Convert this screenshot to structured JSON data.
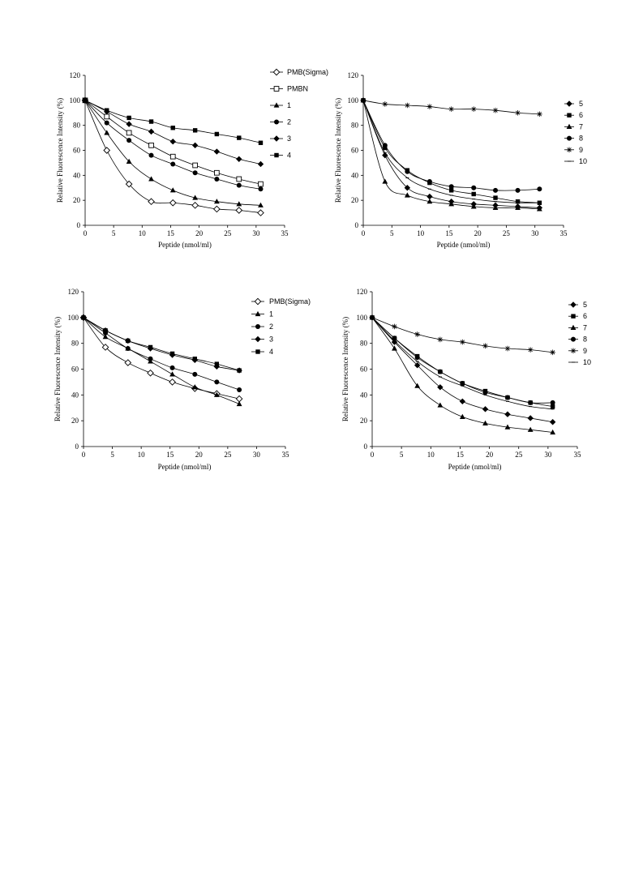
{
  "chart_data": [
    {
      "type": "line",
      "xlabel": "Peptide (nmol/ml)",
      "ylabel": "Relative Fluorescence Intensity (%)",
      "xlim": [
        0,
        35
      ],
      "ylim": [
        0,
        120
      ],
      "xticks": [
        "0",
        "5",
        "10",
        "15",
        "20",
        "25",
        "30",
        "35"
      ],
      "yticks": [
        "0",
        "20",
        "40",
        "60",
        "80",
        "100",
        "120"
      ],
      "grid": false,
      "legend": "right",
      "series": [
        {
          "name": "PMB(Sigma)",
          "marker": "diamond-open",
          "x": [
            0,
            3.8,
            7.7,
            11.6,
            15.4,
            19.3,
            23.1,
            27.0,
            30.8
          ],
          "y": [
            100,
            60,
            33,
            19,
            18,
            16,
            13,
            12,
            10
          ]
        },
        {
          "name": "PMBN",
          "marker": "square-open",
          "x": [
            0,
            3.8,
            7.7,
            11.6,
            15.4,
            19.3,
            23.1,
            27.0,
            30.8
          ],
          "y": [
            100,
            87,
            74,
            64,
            55,
            48,
            42,
            37,
            33
          ]
        },
        {
          "name": "1",
          "marker": "triangle",
          "x": [
            0,
            3.8,
            7.7,
            11.6,
            15.4,
            19.3,
            23.1,
            27.0,
            30.8
          ],
          "y": [
            100,
            74,
            51,
            37,
            28,
            22,
            19,
            17,
            16
          ]
        },
        {
          "name": "2",
          "marker": "circle",
          "x": [
            0,
            3.8,
            7.7,
            11.6,
            15.4,
            19.3,
            23.1,
            27.0,
            30.8
          ],
          "y": [
            100,
            82,
            68,
            56,
            49,
            42,
            37,
            32,
            29
          ]
        },
        {
          "name": "3",
          "marker": "diamond",
          "x": [
            0,
            3.8,
            7.7,
            11.6,
            15.4,
            19.3,
            23.1,
            27.0,
            30.8
          ],
          "y": [
            100,
            91,
            81,
            75,
            67,
            64,
            59,
            53,
            49
          ]
        },
        {
          "name": "4",
          "marker": "square",
          "x": [
            0,
            3.8,
            7.7,
            11.6,
            15.4,
            19.3,
            23.1,
            27.0,
            30.8
          ],
          "y": [
            100,
            92,
            86,
            83,
            78,
            76,
            73,
            70,
            66
          ]
        }
      ]
    },
    {
      "type": "line",
      "xlabel": "Peptide (nmol/ml)",
      "ylabel": "Relative Fluorescence Intensity (%)",
      "xlim": [
        0,
        35
      ],
      "ylim": [
        0,
        120
      ],
      "xticks": [
        "0",
        "5",
        "10",
        "15",
        "20",
        "25",
        "30",
        "35"
      ],
      "yticks": [
        "0",
        "20",
        "40",
        "60",
        "80",
        "100",
        "120"
      ],
      "grid": false,
      "legend": "right",
      "series": [
        {
          "name": "5",
          "marker": "diamond",
          "x": [
            0,
            3.8,
            7.7,
            11.6,
            15.4,
            19.3,
            23.1,
            27.0,
            30.8
          ],
          "y": [
            100,
            56,
            30,
            23,
            19,
            17,
            16,
            15,
            14
          ]
        },
        {
          "name": "6",
          "marker": "square",
          "x": [
            0,
            3.8,
            7.7,
            11.6,
            15.4,
            19.3,
            23.1,
            27.0,
            30.8
          ],
          "y": [
            100,
            62,
            44,
            34,
            28,
            25,
            22,
            19,
            18
          ]
        },
        {
          "name": "7",
          "marker": "triangle",
          "x": [
            0,
            3.8,
            7.7,
            11.6,
            15.4,
            19.3,
            23.1,
            27.0,
            30.8
          ],
          "y": [
            100,
            35,
            24,
            19,
            17,
            15,
            14,
            14,
            13
          ]
        },
        {
          "name": "8",
          "marker": "circle",
          "x": [
            0,
            3.8,
            7.7,
            11.6,
            15.4,
            19.3,
            23.1,
            27.0,
            30.8
          ],
          "y": [
            100,
            64,
            43,
            35,
            31,
            30,
            28,
            28,
            29
          ]
        },
        {
          "name": "9",
          "marker": "star",
          "x": [
            0,
            3.8,
            7.7,
            11.6,
            15.4,
            19.3,
            23.1,
            27.0,
            30.8
          ],
          "y": [
            100,
            97,
            96,
            95,
            93,
            93,
            92,
            90,
            89
          ]
        },
        {
          "name": "10",
          "marker": "dash",
          "x": [
            0,
            3.8,
            7.7,
            11.6,
            15.4,
            19.3,
            23.1,
            27.0,
            30.8
          ],
          "y": [
            100,
            58,
            38,
            29,
            24,
            21,
            19,
            18,
            18
          ]
        }
      ]
    },
    {
      "type": "line",
      "xlabel": "Peptide (nmol/ml)",
      "ylabel": "Relative Fluorescence Intensity (%)",
      "xlim": [
        0,
        35
      ],
      "ylim": [
        0,
        120
      ],
      "xticks": [
        "0",
        "5",
        "10",
        "15",
        "20",
        "25",
        "30",
        "35"
      ],
      "yticks": [
        "0",
        "20",
        "40",
        "60",
        "80",
        "100",
        "120"
      ],
      "grid": false,
      "legend": "right",
      "series": [
        {
          "name": "PMB(Sigma)",
          "marker": "diamond-open",
          "x": [
            0,
            3.8,
            7.7,
            11.6,
            15.4,
            19.3,
            23.1,
            27.0
          ],
          "y": [
            100,
            77,
            65,
            57,
            50,
            45,
            41,
            37
          ]
        },
        {
          "name": "1",
          "marker": "triangle",
          "x": [
            0,
            3.8,
            7.7,
            11.6,
            15.4,
            19.3,
            23.1,
            27.0
          ],
          "y": [
            100,
            85,
            76,
            66,
            56,
            46,
            40,
            33
          ]
        },
        {
          "name": "2",
          "marker": "circle",
          "x": [
            0,
            3.8,
            7.7,
            11.6,
            15.4,
            19.3,
            23.1,
            27.0
          ],
          "y": [
            100,
            88,
            76,
            68,
            61,
            56,
            50,
            44
          ]
        },
        {
          "name": "3",
          "marker": "diamond",
          "x": [
            0,
            3.8,
            7.7,
            11.6,
            15.4,
            19.3,
            23.1,
            27.0
          ],
          "y": [
            100,
            90,
            82,
            76,
            71,
            67,
            62,
            59
          ]
        },
        {
          "name": "4",
          "marker": "square",
          "x": [
            0,
            3.8,
            7.7,
            11.6,
            15.4,
            19.3,
            23.1,
            27.0
          ],
          "y": [
            100,
            90,
            82,
            77,
            72,
            68,
            64,
            59
          ]
        }
      ]
    },
    {
      "type": "line",
      "xlabel": "Peptide (nmol/ml)",
      "ylabel": "Relative Fluorescence Intensity (%)",
      "xlim": [
        0,
        35
      ],
      "ylim": [
        0,
        120
      ],
      "xticks": [
        "0",
        "5",
        "10",
        "15",
        "20",
        "25",
        "30",
        "35"
      ],
      "yticks": [
        "0",
        "20",
        "40",
        "60",
        "80",
        "100",
        "120"
      ],
      "grid": false,
      "legend": "right",
      "series": [
        {
          "name": "5",
          "marker": "diamond",
          "x": [
            0,
            3.8,
            7.7,
            11.6,
            15.4,
            19.3,
            23.1,
            27.0,
            30.8
          ],
          "y": [
            100,
            81,
            63,
            46,
            35,
            29,
            25,
            22,
            19
          ]
        },
        {
          "name": "6",
          "marker": "square",
          "x": [
            0,
            3.8,
            7.7,
            11.6,
            15.4,
            19.3,
            23.1,
            27.0,
            30.8
          ],
          "y": [
            100,
            84,
            70,
            58,
            49,
            43,
            38,
            34,
            31
          ]
        },
        {
          "name": "7",
          "marker": "triangle",
          "x": [
            0,
            3.8,
            7.7,
            11.6,
            15.4,
            19.3,
            23.1,
            27.0,
            30.8
          ],
          "y": [
            100,
            76,
            47,
            32,
            23,
            18,
            15,
            13,
            11
          ]
        },
        {
          "name": "8",
          "marker": "circle",
          "x": [
            0,
            3.8,
            7.7,
            11.6,
            15.4,
            19.3,
            23.1,
            27.0,
            30.8
          ],
          "y": [
            100,
            84,
            69,
            58,
            49,
            42,
            38,
            34,
            34
          ]
        },
        {
          "name": "9",
          "marker": "star",
          "x": [
            0,
            3.8,
            7.7,
            11.6,
            15.4,
            19.3,
            23.1,
            27.0,
            30.8
          ],
          "y": [
            100,
            93,
            87,
            83,
            81,
            78,
            76,
            75,
            73
          ]
        },
        {
          "name": "10",
          "marker": "dash",
          "x": [
            0,
            3.8,
            7.7,
            11.6,
            15.4,
            19.3,
            23.1,
            27.0,
            30.8
          ],
          "y": [
            100,
            82,
            66,
            54,
            47,
            40,
            35,
            31,
            29
          ]
        }
      ]
    }
  ]
}
